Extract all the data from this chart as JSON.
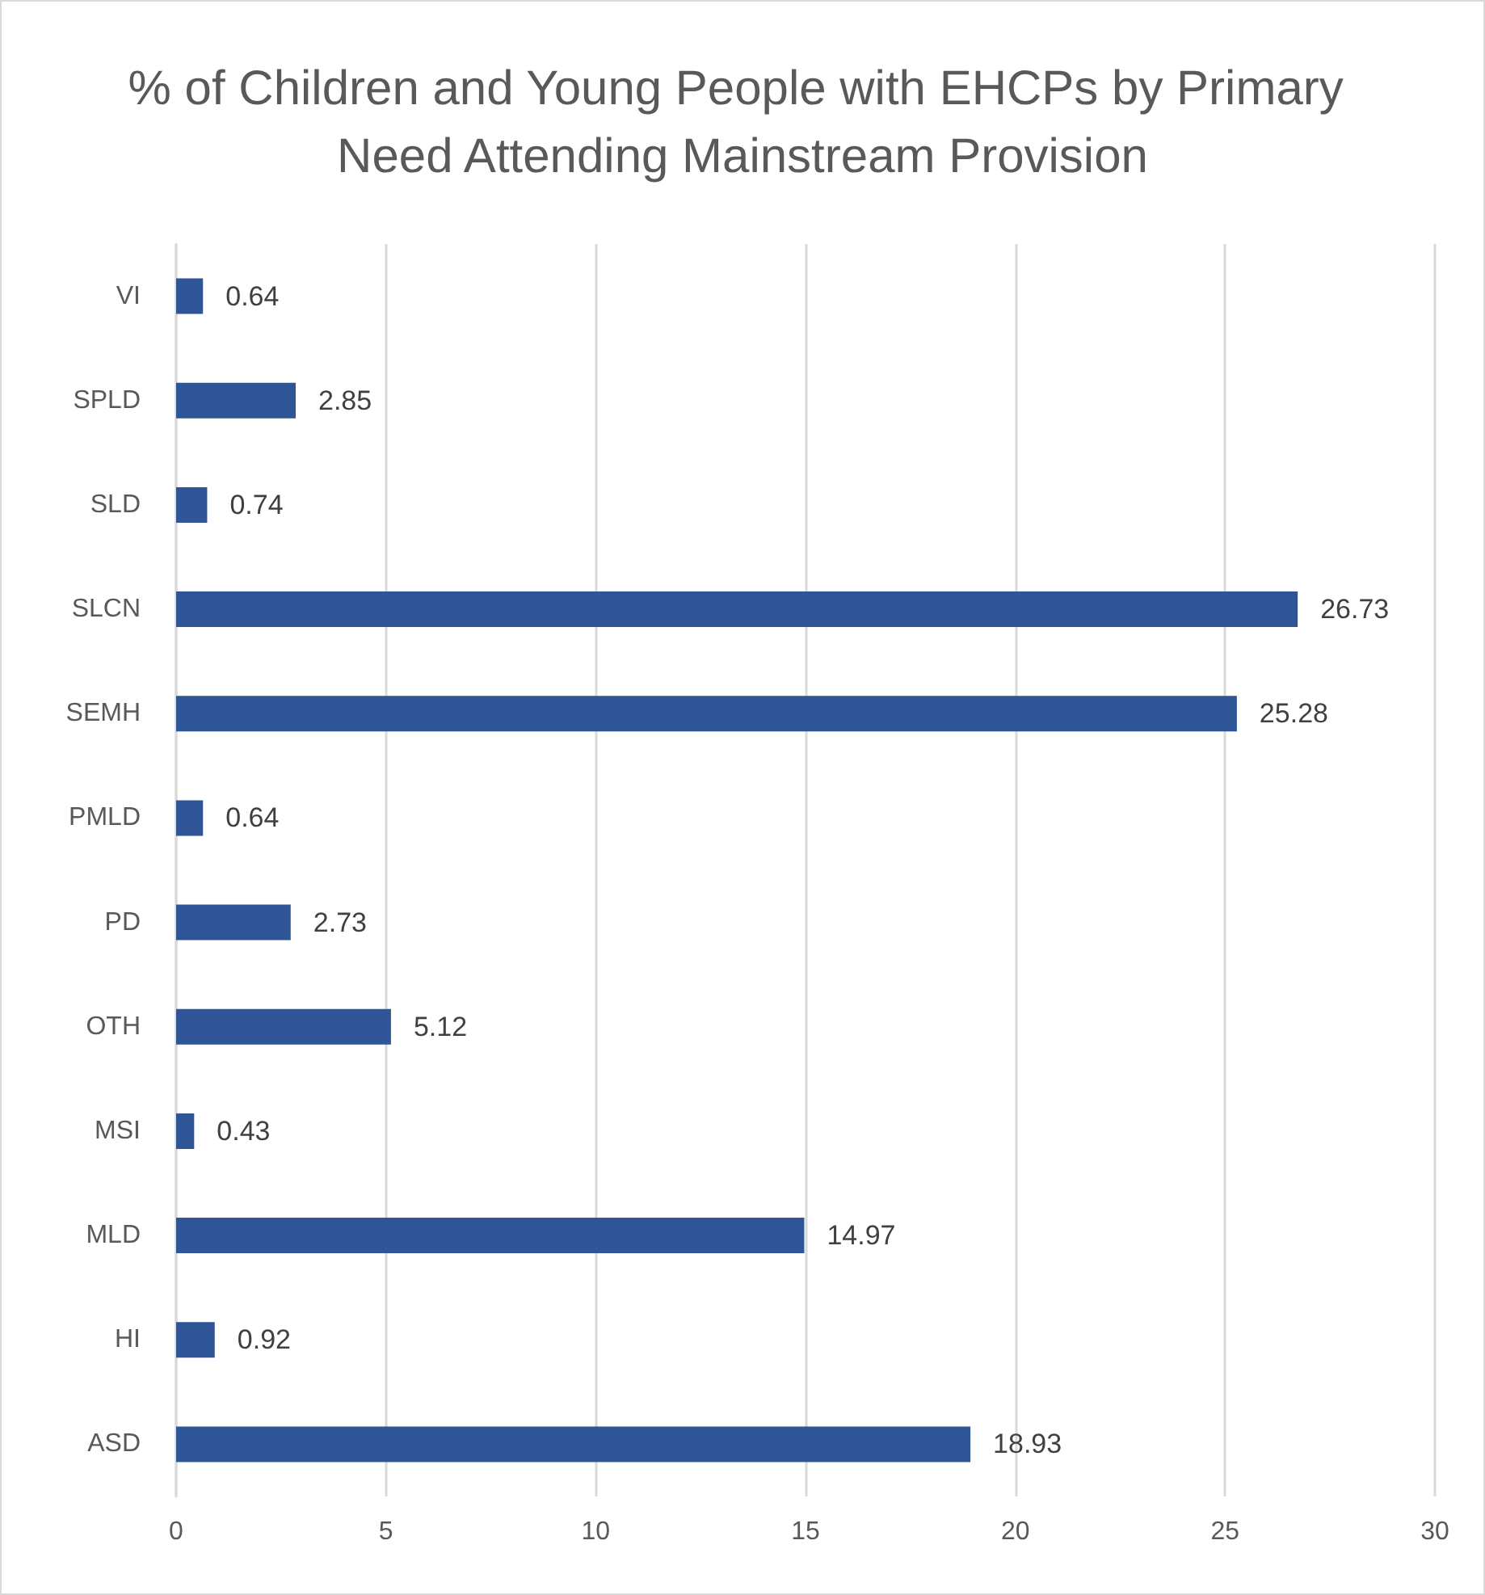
{
  "chart_data": {
    "type": "bar",
    "orientation": "horizontal",
    "title": "% of Children and Young People with EHCPs by Primary Need Attending Mainstream Provision",
    "categories": [
      "VI",
      "SPLD",
      "SLD",
      "SLCN",
      "SEMH",
      "PMLD",
      "PD",
      "OTH",
      "MSI",
      "MLD",
      "HI",
      "ASD"
    ],
    "values": [
      0.64,
      2.85,
      0.74,
      26.73,
      25.28,
      0.64,
      2.73,
      5.12,
      0.43,
      14.97,
      0.92,
      18.93
    ],
    "color": "#2f5597",
    "xlim": [
      0,
      30
    ],
    "xticks": [
      0,
      5,
      10,
      15,
      20,
      25,
      30
    ],
    "grid": "x",
    "data_labels": true
  }
}
